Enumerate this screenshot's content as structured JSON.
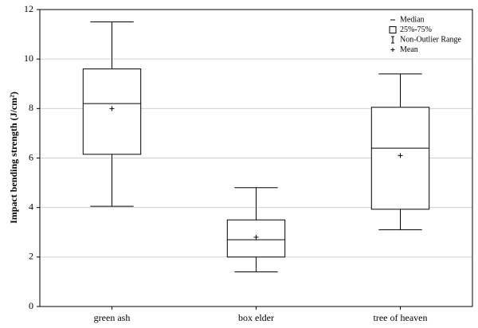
{
  "chart_data": {
    "type": "box",
    "y_label": "Impact bending strength (J/cm²)",
    "categories": [
      "green ash",
      "box elder",
      "tree of heaven"
    ],
    "series": [
      {
        "min": 4.05,
        "q1": 6.15,
        "median": 8.2,
        "q3": 9.6,
        "max": 11.5,
        "mean": 8.0
      },
      {
        "min": 1.4,
        "q1": 2.0,
        "median": 2.7,
        "q3": 3.5,
        "max": 4.8,
        "mean": 2.8
      },
      {
        "min": 3.1,
        "q1": 3.93,
        "median": 6.4,
        "q3": 8.05,
        "max": 9.4,
        "mean": 6.1
      }
    ],
    "legend": [
      "Median",
      "25%-75%",
      "Non-Outlier Range",
      "Mean"
    ],
    "legend_position": "upper right",
    "color": "#000000",
    "ylim": [
      0,
      12
    ],
    "yticks": [
      0,
      2,
      4,
      6,
      8,
      10,
      12
    ],
    "grid": true
  }
}
